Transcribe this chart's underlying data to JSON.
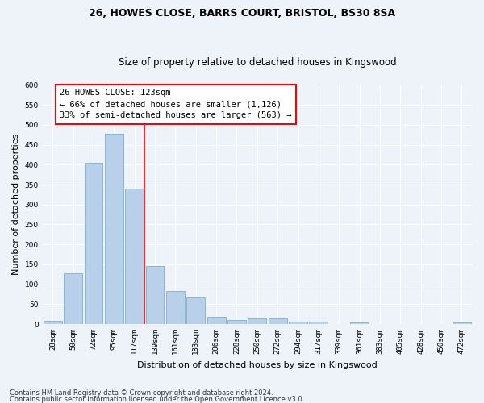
{
  "title1": "26, HOWES CLOSE, BARRS COURT, BRISTOL, BS30 8SA",
  "title2": "Size of property relative to detached houses in Kingswood",
  "xlabel": "Distribution of detached houses by size in Kingswood",
  "ylabel": "Number of detached properties",
  "footer1": "Contains HM Land Registry data © Crown copyright and database right 2024.",
  "footer2": "Contains public sector information licensed under the Open Government Licence v3.0.",
  "categories": [
    "28sqm",
    "50sqm",
    "72sqm",
    "95sqm",
    "117sqm",
    "139sqm",
    "161sqm",
    "183sqm",
    "206sqm",
    "228sqm",
    "250sqm",
    "272sqm",
    "294sqm",
    "317sqm",
    "339sqm",
    "361sqm",
    "383sqm",
    "405sqm",
    "428sqm",
    "450sqm",
    "472sqm"
  ],
  "values": [
    8,
    127,
    405,
    477,
    341,
    145,
    84,
    67,
    18,
    11,
    15,
    15,
    7,
    7,
    0,
    4,
    0,
    0,
    0,
    0,
    4
  ],
  "bar_color": "#b8d0ea",
  "bar_edge_color": "#7aafd4",
  "vline_x": 4.5,
  "vline_color": "red",
  "annotation_text": "26 HOWES CLOSE: 123sqm\n← 66% of detached houses are smaller (1,126)\n33% of semi-detached houses are larger (563) →",
  "annotation_box_color": "white",
  "annotation_box_edge": "red",
  "ylim": [
    0,
    600
  ],
  "yticks": [
    0,
    50,
    100,
    150,
    200,
    250,
    300,
    350,
    400,
    450,
    500,
    550,
    600
  ],
  "background_color": "#eef2f9",
  "grid_color": "white",
  "title1_fontsize": 9,
  "title2_fontsize": 8.5,
  "ylabel_fontsize": 8,
  "xlabel_fontsize": 8,
  "tick_fontsize": 6.5,
  "footer_fontsize": 6,
  "annot_fontsize": 7.5
}
